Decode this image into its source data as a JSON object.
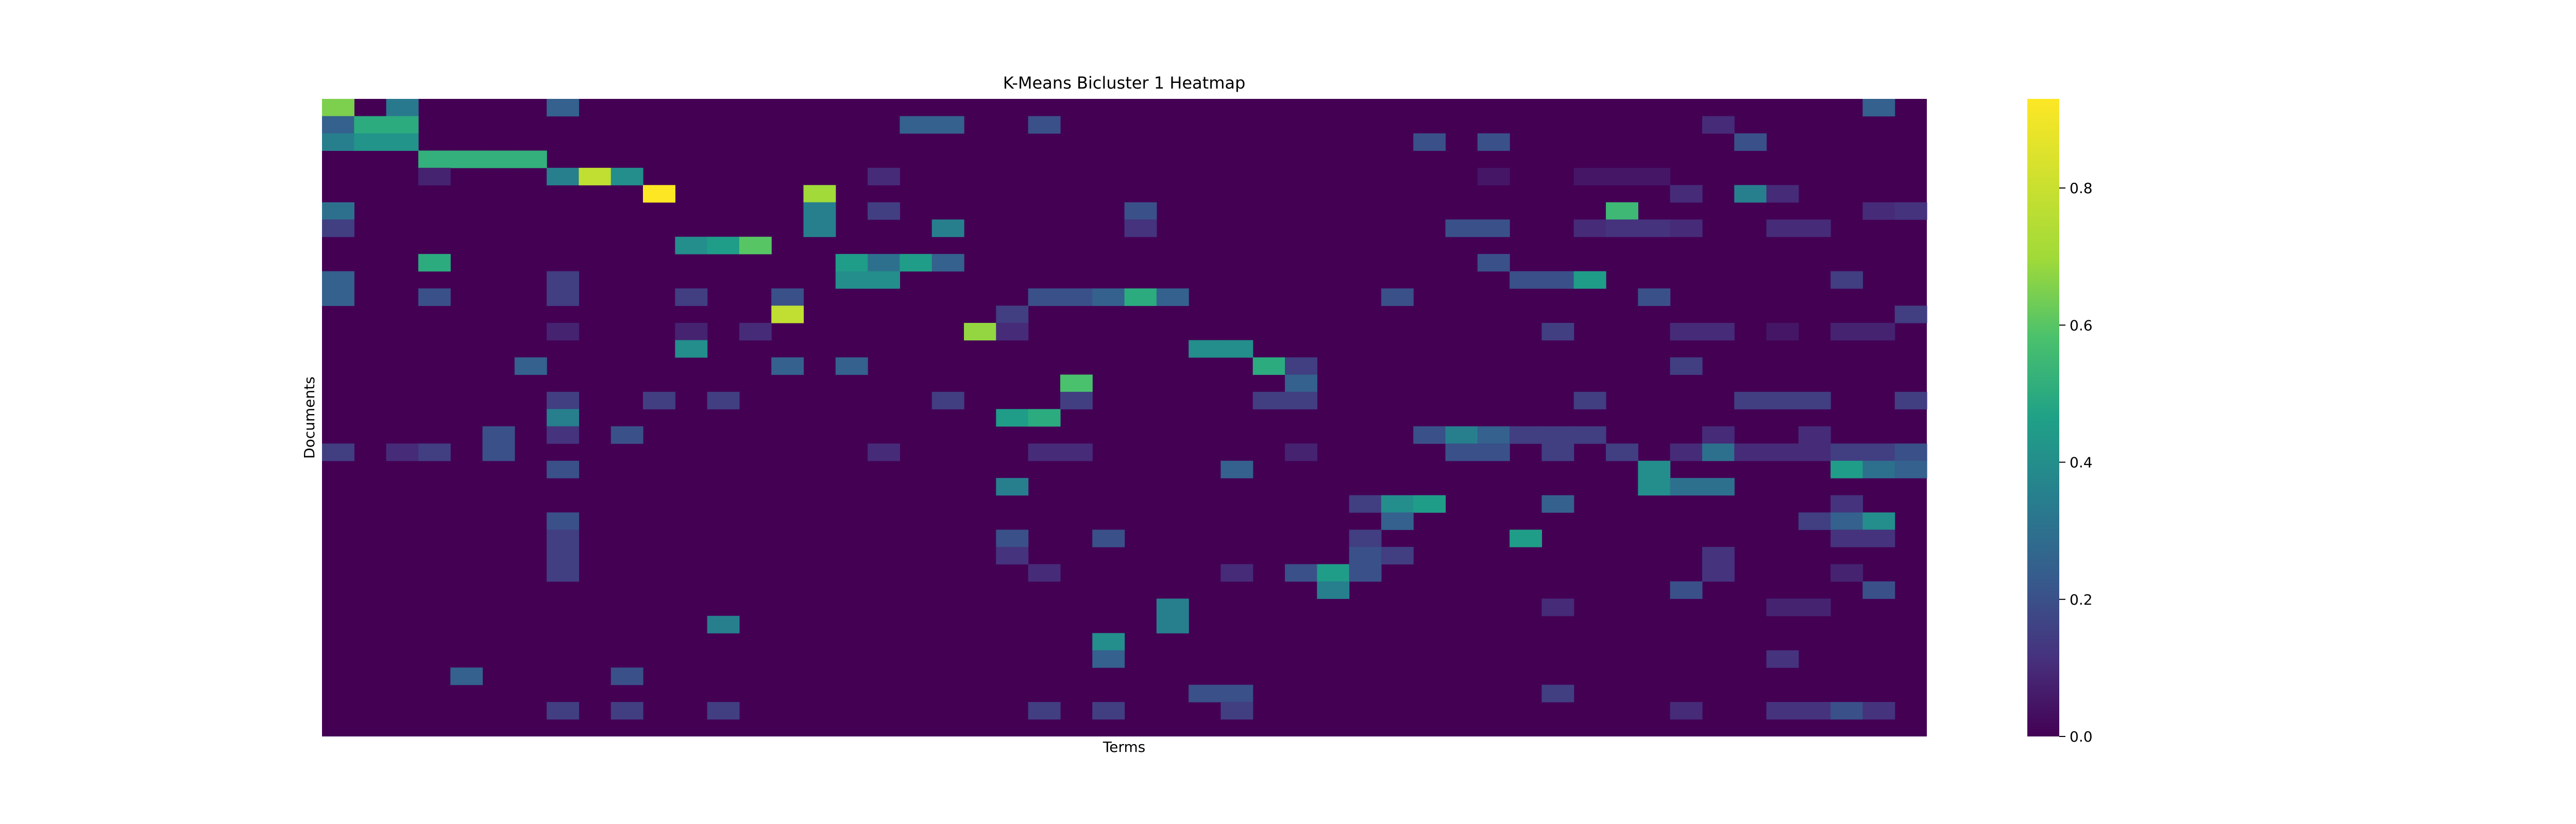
{
  "chart_data": {
    "type": "heatmap",
    "title": "K-Means Bicluster 1 Heatmap",
    "xlabel": "Terms",
    "ylabel": "Documents",
    "n_rows": 37,
    "n_cols": 50,
    "colormap": "viridis",
    "colorbar": {
      "vmin": 0.0,
      "vmax": 0.93,
      "ticks": [
        0.0,
        0.2,
        0.4,
        0.6,
        0.8
      ],
      "tick_labels": [
        "0.0",
        "0.2",
        "0.4",
        "0.6",
        "0.8"
      ]
    },
    "cells": [
      [
        0,
        0,
        0.65
      ],
      [
        0,
        2,
        0.33
      ],
      [
        0,
        7,
        0.25
      ],
      [
        0,
        48,
        0.25
      ],
      [
        1,
        0,
        0.25
      ],
      [
        1,
        1,
        0.5
      ],
      [
        1,
        2,
        0.5
      ],
      [
        1,
        18,
        0.25
      ],
      [
        1,
        19,
        0.25
      ],
      [
        1,
        22,
        0.2
      ],
      [
        1,
        43,
        0.1
      ],
      [
        2,
        0,
        0.35
      ],
      [
        2,
        1,
        0.42
      ],
      [
        2,
        2,
        0.42
      ],
      [
        2,
        34,
        0.2
      ],
      [
        2,
        36,
        0.2
      ],
      [
        2,
        44,
        0.2
      ],
      [
        3,
        3,
        0.52
      ],
      [
        3,
        4,
        0.52
      ],
      [
        3,
        5,
        0.52
      ],
      [
        3,
        6,
        0.52
      ],
      [
        4,
        3,
        0.08
      ],
      [
        4,
        7,
        0.35
      ],
      [
        4,
        8,
        0.78
      ],
      [
        4,
        9,
        0.4
      ],
      [
        4,
        17,
        0.1
      ],
      [
        4,
        36,
        0.05
      ],
      [
        4,
        39,
        0.05
      ],
      [
        4,
        40,
        0.05
      ],
      [
        4,
        41,
        0.05
      ],
      [
        5,
        10,
        0.93
      ],
      [
        5,
        15,
        0.7
      ],
      [
        5,
        42,
        0.1
      ],
      [
        5,
        44,
        0.35
      ],
      [
        5,
        45,
        0.1
      ],
      [
        6,
        0,
        0.3
      ],
      [
        6,
        15,
        0.35
      ],
      [
        6,
        17,
        0.15
      ],
      [
        6,
        25,
        0.2
      ],
      [
        6,
        40,
        0.55
      ],
      [
        6,
        48,
        0.1
      ],
      [
        6,
        49,
        0.12
      ],
      [
        7,
        0,
        0.15
      ],
      [
        7,
        15,
        0.35
      ],
      [
        7,
        19,
        0.35
      ],
      [
        7,
        25,
        0.12
      ],
      [
        7,
        35,
        0.2
      ],
      [
        7,
        36,
        0.2
      ],
      [
        7,
        39,
        0.1
      ],
      [
        7,
        40,
        0.12
      ],
      [
        7,
        41,
        0.12
      ],
      [
        7,
        42,
        0.1
      ],
      [
        7,
        45,
        0.1
      ],
      [
        7,
        46,
        0.1
      ],
      [
        8,
        11,
        0.4
      ],
      [
        8,
        12,
        0.45
      ],
      [
        8,
        13,
        0.6
      ],
      [
        9,
        3,
        0.5
      ],
      [
        9,
        16,
        0.45
      ],
      [
        9,
        17,
        0.3
      ],
      [
        9,
        18,
        0.45
      ],
      [
        9,
        19,
        0.25
      ],
      [
        9,
        36,
        0.2
      ],
      [
        10,
        0,
        0.25
      ],
      [
        10,
        7,
        0.15
      ],
      [
        10,
        16,
        0.4
      ],
      [
        10,
        17,
        0.4
      ],
      [
        10,
        37,
        0.2
      ],
      [
        10,
        38,
        0.2
      ],
      [
        10,
        39,
        0.45
      ],
      [
        10,
        47,
        0.15
      ],
      [
        11,
        0,
        0.25
      ],
      [
        11,
        3,
        0.2
      ],
      [
        11,
        7,
        0.15
      ],
      [
        11,
        11,
        0.15
      ],
      [
        11,
        14,
        0.2
      ],
      [
        11,
        22,
        0.2
      ],
      [
        11,
        23,
        0.2
      ],
      [
        11,
        24,
        0.25
      ],
      [
        11,
        25,
        0.5
      ],
      [
        11,
        26,
        0.25
      ],
      [
        11,
        33,
        0.2
      ],
      [
        11,
        41,
        0.2
      ],
      [
        12,
        14,
        0.78
      ],
      [
        12,
        21,
        0.15
      ],
      [
        12,
        49,
        0.15
      ],
      [
        13,
        7,
        0.08
      ],
      [
        13,
        11,
        0.08
      ],
      [
        13,
        13,
        0.1
      ],
      [
        13,
        20,
        0.68
      ],
      [
        13,
        21,
        0.1
      ],
      [
        13,
        38,
        0.15
      ],
      [
        13,
        42,
        0.1
      ],
      [
        13,
        43,
        0.1
      ],
      [
        13,
        45,
        0.05
      ],
      [
        13,
        47,
        0.08
      ],
      [
        13,
        48,
        0.08
      ],
      [
        14,
        11,
        0.4
      ],
      [
        14,
        27,
        0.4
      ],
      [
        14,
        28,
        0.4
      ],
      [
        15,
        6,
        0.25
      ],
      [
        15,
        14,
        0.25
      ],
      [
        15,
        16,
        0.25
      ],
      [
        15,
        29,
        0.5
      ],
      [
        15,
        30,
        0.15
      ],
      [
        15,
        42,
        0.15
      ],
      [
        16,
        23,
        0.58
      ],
      [
        16,
        30,
        0.25
      ],
      [
        17,
        7,
        0.15
      ],
      [
        17,
        10,
        0.15
      ],
      [
        17,
        12,
        0.15
      ],
      [
        17,
        19,
        0.15
      ],
      [
        17,
        23,
        0.15
      ],
      [
        17,
        29,
        0.15
      ],
      [
        17,
        30,
        0.15
      ],
      [
        17,
        39,
        0.15
      ],
      [
        17,
        44,
        0.15
      ],
      [
        17,
        45,
        0.15
      ],
      [
        17,
        46,
        0.15
      ],
      [
        17,
        49,
        0.15
      ],
      [
        18,
        7,
        0.35
      ],
      [
        18,
        21,
        0.45
      ],
      [
        18,
        22,
        0.5
      ],
      [
        19,
        5,
        0.2
      ],
      [
        19,
        7,
        0.12
      ],
      [
        19,
        9,
        0.2
      ],
      [
        19,
        34,
        0.2
      ],
      [
        19,
        35,
        0.35
      ],
      [
        19,
        36,
        0.25
      ],
      [
        19,
        37,
        0.15
      ],
      [
        19,
        38,
        0.15
      ],
      [
        19,
        39,
        0.15
      ],
      [
        19,
        43,
        0.1
      ],
      [
        19,
        46,
        0.1
      ],
      [
        20,
        0,
        0.15
      ],
      [
        20,
        2,
        0.1
      ],
      [
        20,
        3,
        0.15
      ],
      [
        20,
        5,
        0.2
      ],
      [
        20,
        17,
        0.1
      ],
      [
        20,
        22,
        0.1
      ],
      [
        20,
        23,
        0.1
      ],
      [
        20,
        30,
        0.08
      ],
      [
        20,
        35,
        0.2
      ],
      [
        20,
        36,
        0.2
      ],
      [
        20,
        38,
        0.15
      ],
      [
        20,
        40,
        0.15
      ],
      [
        20,
        42,
        0.1
      ],
      [
        20,
        43,
        0.3
      ],
      [
        20,
        44,
        0.1
      ],
      [
        20,
        45,
        0.1
      ],
      [
        20,
        46,
        0.1
      ],
      [
        20,
        47,
        0.15
      ],
      [
        20,
        48,
        0.15
      ],
      [
        20,
        49,
        0.2
      ],
      [
        21,
        7,
        0.2
      ],
      [
        21,
        28,
        0.25
      ],
      [
        21,
        41,
        0.4
      ],
      [
        21,
        47,
        0.45
      ],
      [
        21,
        48,
        0.3
      ],
      [
        21,
        49,
        0.25
      ],
      [
        22,
        21,
        0.35
      ],
      [
        22,
        41,
        0.4
      ],
      [
        22,
        42,
        0.3
      ],
      [
        22,
        43,
        0.3
      ],
      [
        23,
        32,
        0.15
      ],
      [
        23,
        33,
        0.4
      ],
      [
        23,
        34,
        0.45
      ],
      [
        23,
        38,
        0.25
      ],
      [
        23,
        47,
        0.12
      ],
      [
        24,
        7,
        0.2
      ],
      [
        24,
        33,
        0.25
      ],
      [
        24,
        46,
        0.15
      ],
      [
        24,
        47,
        0.25
      ],
      [
        24,
        48,
        0.4
      ],
      [
        25,
        7,
        0.15
      ],
      [
        25,
        21,
        0.2
      ],
      [
        25,
        24,
        0.2
      ],
      [
        25,
        32,
        0.15
      ],
      [
        25,
        37,
        0.45
      ],
      [
        25,
        47,
        0.12
      ],
      [
        25,
        48,
        0.12
      ],
      [
        26,
        7,
        0.15
      ],
      [
        26,
        21,
        0.12
      ],
      [
        26,
        32,
        0.2
      ],
      [
        26,
        33,
        0.15
      ],
      [
        26,
        43,
        0.12
      ],
      [
        27,
        7,
        0.15
      ],
      [
        27,
        22,
        0.1
      ],
      [
        27,
        28,
        0.1
      ],
      [
        27,
        30,
        0.2
      ],
      [
        27,
        31,
        0.45
      ],
      [
        27,
        32,
        0.2
      ],
      [
        27,
        43,
        0.12
      ],
      [
        27,
        47,
        0.08
      ],
      [
        28,
        31,
        0.35
      ],
      [
        28,
        42,
        0.2
      ],
      [
        28,
        48,
        0.2
      ],
      [
        29,
        26,
        0.35
      ],
      [
        29,
        38,
        0.1
      ],
      [
        29,
        45,
        0.08
      ],
      [
        29,
        46,
        0.08
      ],
      [
        30,
        12,
        0.35
      ],
      [
        30,
        26,
        0.35
      ],
      [
        31,
        24,
        0.4
      ],
      [
        32,
        24,
        0.25
      ],
      [
        32,
        45,
        0.12
      ],
      [
        33,
        4,
        0.25
      ],
      [
        33,
        9,
        0.2
      ],
      [
        34,
        27,
        0.2
      ],
      [
        34,
        28,
        0.2
      ],
      [
        34,
        38,
        0.15
      ],
      [
        35,
        7,
        0.15
      ],
      [
        35,
        9,
        0.15
      ],
      [
        35,
        12,
        0.15
      ],
      [
        35,
        22,
        0.15
      ],
      [
        35,
        24,
        0.15
      ],
      [
        35,
        28,
        0.15
      ],
      [
        35,
        42,
        0.1
      ],
      [
        35,
        45,
        0.12
      ],
      [
        35,
        46,
        0.12
      ],
      [
        35,
        47,
        0.2
      ],
      [
        35,
        48,
        0.12
      ]
    ]
  }
}
